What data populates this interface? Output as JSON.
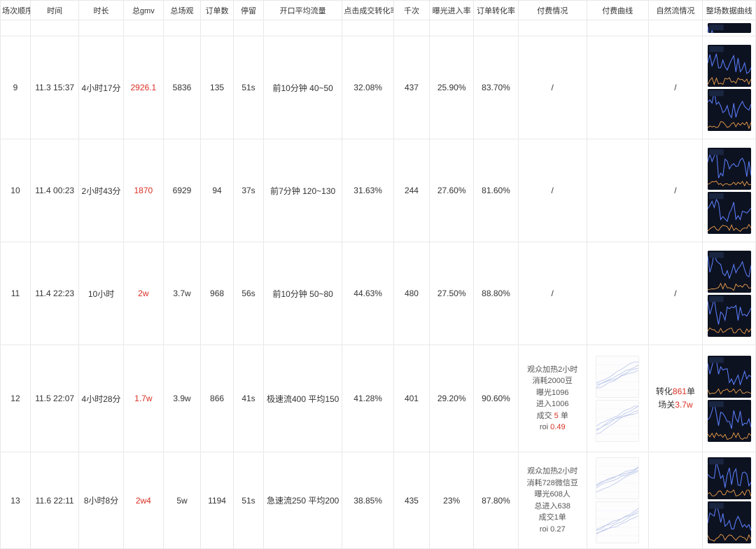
{
  "columns": [
    "场次顺序",
    "时间",
    "时长",
    "总gmv",
    "总场观",
    "订单数",
    "停留",
    "开口平均流量",
    "点击成交转化率",
    "千次",
    "曝光进入率",
    "订单转化率",
    "付费情况",
    "付费曲线",
    "自然流情况",
    "整场数据曲线"
  ],
  "rows": [
    {
      "seq": "9",
      "time": "11.3 15:37",
      "dur": "4小时17分",
      "gmv": "2926.1",
      "view": "5836",
      "orders": "135",
      "stay": "51s",
      "flow": "前10分钟 40~50",
      "click": "32.08%",
      "qian": "437",
      "expo": "25.90%",
      "ordc": "83.70%",
      "pay": "/",
      "nat": "/",
      "charts": 2
    },
    {
      "seq": "10",
      "time": "11.4 00:23",
      "dur": "2小时43分",
      "gmv": "1870",
      "view": "6929",
      "orders": "94",
      "stay": "37s",
      "flow": "前7分钟 120~130",
      "click": "31.63%",
      "qian": "244",
      "expo": "27.60%",
      "ordc": "81.60%",
      "pay": "/",
      "nat": "/",
      "charts": 2
    },
    {
      "seq": "11",
      "time": "11.4 22:23",
      "dur": "10小时",
      "gmv": "2w",
      "view": "3.7w",
      "orders": "968",
      "stay": "56s",
      "flow": "前10分钟 50~80",
      "click": "44.63%",
      "qian": "480",
      "expo": "27.50%",
      "ordc": "88.80%",
      "pay": "/",
      "nat": "/",
      "charts": 2
    },
    {
      "seq": "12",
      "time": "11.5 22:07",
      "dur": "4小时28分",
      "gmv": "1.7w",
      "view": "3.9w",
      "orders": "866",
      "stay": "41s",
      "flow": "极速流400 平均150",
      "click": "41.28%",
      "qian": "401",
      "expo": "29.20%",
      "ordc": "90.60%",
      "pay_lines": [
        "观众加热2小时",
        "消耗2000豆",
        "曝光1096",
        "进入1006"
      ],
      "pay_tx": [
        "成交 ",
        " 5 ",
        "",
        " 单"
      ],
      "pay_roi": [
        "roi ",
        "0.49"
      ],
      "nat_lines": [
        "转化",
        "861",
        "单",
        "场关",
        "3.7w"
      ],
      "charts": 2,
      "has_light_charts": true
    },
    {
      "seq": "13",
      "time": "11.6 22:11",
      "dur": "8小时8分",
      "gmv": "2w4",
      "view": "5w",
      "orders": "1194",
      "stay": "51s",
      "flow": "急速流250 平均200",
      "click": "38.85%",
      "qian": "435",
      "expo": "23%",
      "ordc": "87.80%",
      "pay_lines": [
        "观众加热2小时",
        "消耗728微信豆",
        "曝光608人",
        "总进入638",
        "成交1单",
        "roi 0.27"
      ],
      "charts": 2,
      "has_light_charts": true
    }
  ],
  "chart_colors": {
    "bg": "#0d1220",
    "line": "#5b7fff",
    "accent": "#ffa94d",
    "light_line": "#b9c5e8"
  }
}
